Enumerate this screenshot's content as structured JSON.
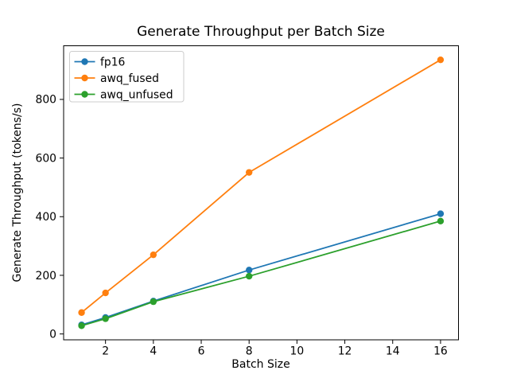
{
  "figure": {
    "background": "#ffffff",
    "spine_color": "#000000",
    "text_color": "#000000"
  },
  "chart_data": {
    "type": "line",
    "title": "Generate Throughput per Batch Size",
    "xlabel": "Batch Size",
    "ylabel": "Generate Throughput (tokens/s)",
    "x": [
      1,
      2,
      4,
      8,
      16
    ],
    "series": [
      {
        "name": "fp16",
        "color": "#1f77b4",
        "marker": "circle",
        "values": [
          31,
          56,
          112,
          218,
          410
        ]
      },
      {
        "name": "awq_fused",
        "color": "#ff7f0e",
        "marker": "circle",
        "values": [
          73,
          140,
          270,
          551,
          935
        ]
      },
      {
        "name": "awq_unfused",
        "color": "#2ca02c",
        "marker": "circle",
        "values": [
          28,
          52,
          110,
          197,
          385
        ]
      }
    ],
    "xticks": [
      2,
      4,
      6,
      8,
      10,
      12,
      14,
      16
    ],
    "yticks": [
      0,
      200,
      400,
      600,
      800
    ],
    "xlim": [
      0.25,
      16.75
    ],
    "ylim": [
      -20,
      983
    ],
    "grid": false,
    "legend": {
      "position": "upper-left",
      "entries": [
        "fp16",
        "awq_fused",
        "awq_unfused"
      ]
    }
  }
}
